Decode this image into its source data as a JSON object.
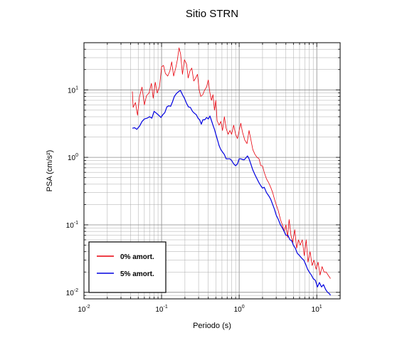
{
  "chart_data": {
    "type": "line",
    "title": "Sitio STRN",
    "xlabel": "Periodo (s)",
    "ylabel": "PSA (cm/s²)",
    "xscale": "log",
    "yscale": "log",
    "xlim": [
      0.01,
      20
    ],
    "ylim": [
      0.008,
      50
    ],
    "grid": true,
    "legend_position": "bottom-left",
    "x_ticks": [
      {
        "value": 0.01,
        "base": "10",
        "exp": "-2"
      },
      {
        "value": 0.1,
        "base": "10",
        "exp": "-1"
      },
      {
        "value": 1,
        "base": "10",
        "exp": "0"
      },
      {
        "value": 10,
        "base": "10",
        "exp": "1"
      }
    ],
    "y_ticks": [
      {
        "value": 0.01,
        "base": "10",
        "exp": "-2"
      },
      {
        "value": 0.1,
        "base": "10",
        "exp": "-1"
      },
      {
        "value": 1,
        "base": "10",
        "exp": "0"
      },
      {
        "value": 10,
        "base": "10",
        "exp": "1"
      }
    ],
    "series": [
      {
        "name": "0% amort.",
        "color": "#e8000b",
        "points": [
          [
            0.042,
            9.5
          ],
          [
            0.043,
            5.5
          ],
          [
            0.046,
            6.5
          ],
          [
            0.049,
            4.2
          ],
          [
            0.052,
            8.0
          ],
          [
            0.056,
            11.0
          ],
          [
            0.06,
            6.0
          ],
          [
            0.064,
            8.2
          ],
          [
            0.069,
            9.0
          ],
          [
            0.074,
            12.5
          ],
          [
            0.078,
            7.5
          ],
          [
            0.083,
            13.0
          ],
          [
            0.088,
            9.0
          ],
          [
            0.094,
            11.0
          ],
          [
            0.1,
            22.0
          ],
          [
            0.106,
            23.0
          ],
          [
            0.112,
            17.5
          ],
          [
            0.12,
            16.0
          ],
          [
            0.128,
            19.0
          ],
          [
            0.135,
            26.0
          ],
          [
            0.143,
            16.0
          ],
          [
            0.152,
            21.0
          ],
          [
            0.16,
            28.0
          ],
          [
            0.168,
            42.0
          ],
          [
            0.176,
            34.0
          ],
          [
            0.186,
            17.0
          ],
          [
            0.197,
            28.0
          ],
          [
            0.21,
            24.0
          ],
          [
            0.22,
            15.0
          ],
          [
            0.232,
            19.0
          ],
          [
            0.245,
            21.0
          ],
          [
            0.26,
            13.5
          ],
          [
            0.275,
            15.0
          ],
          [
            0.29,
            17.0
          ],
          [
            0.305,
            10.0
          ],
          [
            0.32,
            8.0
          ],
          [
            0.34,
            8.5
          ],
          [
            0.36,
            10.0
          ],
          [
            0.38,
            11.0
          ],
          [
            0.4,
            14.0
          ],
          [
            0.42,
            9.0
          ],
          [
            0.44,
            7.0
          ],
          [
            0.46,
            8.5
          ],
          [
            0.48,
            5.0
          ],
          [
            0.5,
            7.0
          ],
          [
            0.52,
            3.5
          ],
          [
            0.55,
            3.0
          ],
          [
            0.58,
            3.4
          ],
          [
            0.61,
            2.5
          ],
          [
            0.645,
            4.0
          ],
          [
            0.68,
            2.7
          ],
          [
            0.72,
            2.2
          ],
          [
            0.76,
            2.5
          ],
          [
            0.8,
            2.2
          ],
          [
            0.85,
            3.0
          ],
          [
            0.9,
            2.2
          ],
          [
            0.95,
            1.9
          ],
          [
            1.0,
            2.5
          ],
          [
            1.05,
            3.2
          ],
          [
            1.1,
            2.4
          ],
          [
            1.18,
            1.8
          ],
          [
            1.26,
            1.6
          ],
          [
            1.34,
            2.5
          ],
          [
            1.42,
            1.8
          ],
          [
            1.5,
            1.3
          ],
          [
            1.6,
            1.1
          ],
          [
            1.7,
            1.0
          ],
          [
            1.8,
            0.95
          ],
          [
            1.9,
            0.75
          ],
          [
            2.0,
            0.75
          ],
          [
            2.1,
            0.6
          ],
          [
            2.25,
            0.48
          ],
          [
            2.4,
            0.42
          ],
          [
            2.55,
            0.36
          ],
          [
            2.7,
            0.3
          ],
          [
            2.85,
            0.24
          ],
          [
            3.0,
            0.2
          ],
          [
            3.2,
            0.16
          ],
          [
            3.4,
            0.12
          ],
          [
            3.6,
            0.1
          ],
          [
            3.8,
            0.08
          ],
          [
            4.0,
            0.1
          ],
          [
            4.2,
            0.065
          ],
          [
            4.4,
            0.12
          ],
          [
            4.65,
            0.07
          ],
          [
            4.9,
            0.055
          ],
          [
            5.2,
            0.085
          ],
          [
            5.5,
            0.045
          ],
          [
            5.8,
            0.06
          ],
          [
            6.1,
            0.05
          ],
          [
            6.5,
            0.06
          ],
          [
            6.9,
            0.035
          ],
          [
            7.3,
            0.06
          ],
          [
            7.7,
            0.028
          ],
          [
            8.2,
            0.04
          ],
          [
            8.7,
            0.025
          ],
          [
            9.2,
            0.03
          ],
          [
            9.8,
            0.022
          ],
          [
            10.4,
            0.028
          ],
          [
            11.0,
            0.018
          ],
          [
            11.7,
            0.024
          ],
          [
            12.4,
            0.02
          ],
          [
            13.2,
            0.02
          ],
          [
            14.0,
            0.018
          ],
          [
            15.0,
            0.016
          ]
        ]
      },
      {
        "name": "5% amort.",
        "color": "#0000e0",
        "points": [
          [
            0.042,
            2.7
          ],
          [
            0.045,
            2.75
          ],
          [
            0.048,
            2.6
          ],
          [
            0.052,
            2.9
          ],
          [
            0.056,
            3.4
          ],
          [
            0.06,
            3.7
          ],
          [
            0.065,
            3.8
          ],
          [
            0.07,
            4.0
          ],
          [
            0.075,
            3.8
          ],
          [
            0.08,
            4.8
          ],
          [
            0.086,
            4.5
          ],
          [
            0.092,
            4.2
          ],
          [
            0.098,
            3.9
          ],
          [
            0.104,
            4.3
          ],
          [
            0.11,
            4.6
          ],
          [
            0.117,
            5.6
          ],
          [
            0.124,
            5.8
          ],
          [
            0.131,
            5.7
          ],
          [
            0.138,
            6.6
          ],
          [
            0.146,
            8.0
          ],
          [
            0.155,
            8.8
          ],
          [
            0.165,
            9.4
          ],
          [
            0.175,
            9.8
          ],
          [
            0.186,
            8.5
          ],
          [
            0.197,
            7.5
          ],
          [
            0.21,
            6.3
          ],
          [
            0.222,
            5.6
          ],
          [
            0.235,
            5.5
          ],
          [
            0.25,
            4.8
          ],
          [
            0.265,
            4.5
          ],
          [
            0.28,
            4.3
          ],
          [
            0.295,
            3.8
          ],
          [
            0.31,
            3.6
          ],
          [
            0.325,
            3.1
          ],
          [
            0.34,
            3.6
          ],
          [
            0.36,
            3.6
          ],
          [
            0.38,
            3.9
          ],
          [
            0.4,
            3.7
          ],
          [
            0.42,
            4.1
          ],
          [
            0.44,
            3.5
          ],
          [
            0.46,
            3.0
          ],
          [
            0.48,
            2.6
          ],
          [
            0.5,
            2.2
          ],
          [
            0.52,
            1.9
          ],
          [
            0.55,
            1.5
          ],
          [
            0.58,
            1.3
          ],
          [
            0.61,
            1.2
          ],
          [
            0.645,
            1.1
          ],
          [
            0.68,
            0.95
          ],
          [
            0.72,
            0.95
          ],
          [
            0.76,
            0.95
          ],
          [
            0.8,
            0.9
          ],
          [
            0.85,
            0.8
          ],
          [
            0.9,
            0.75
          ],
          [
            0.95,
            0.8
          ],
          [
            1.0,
            0.95
          ],
          [
            1.05,
            0.95
          ],
          [
            1.1,
            0.93
          ],
          [
            1.16,
            0.92
          ],
          [
            1.22,
            0.98
          ],
          [
            1.28,
            1.05
          ],
          [
            1.34,
            0.95
          ],
          [
            1.4,
            0.82
          ],
          [
            1.5,
            0.65
          ],
          [
            1.6,
            0.55
          ],
          [
            1.7,
            0.48
          ],
          [
            1.8,
            0.42
          ],
          [
            1.9,
            0.38
          ],
          [
            2.0,
            0.35
          ],
          [
            2.1,
            0.36
          ],
          [
            2.25,
            0.3
          ],
          [
            2.4,
            0.27
          ],
          [
            2.55,
            0.24
          ],
          [
            2.7,
            0.2
          ],
          [
            2.85,
            0.17
          ],
          [
            3.0,
            0.14
          ],
          [
            3.2,
            0.12
          ],
          [
            3.4,
            0.1
          ],
          [
            3.6,
            0.09
          ],
          [
            3.8,
            0.08
          ],
          [
            4.0,
            0.07
          ],
          [
            4.25,
            0.07
          ],
          [
            4.5,
            0.06
          ],
          [
            4.75,
            0.058
          ],
          [
            5.0,
            0.05
          ],
          [
            5.3,
            0.045
          ],
          [
            5.6,
            0.038
          ],
          [
            6.0,
            0.035
          ],
          [
            6.4,
            0.032
          ],
          [
            6.8,
            0.03
          ],
          [
            7.2,
            0.026
          ],
          [
            7.6,
            0.022
          ],
          [
            8.0,
            0.02
          ],
          [
            8.5,
            0.018
          ],
          [
            9.0,
            0.016
          ],
          [
            9.6,
            0.015
          ],
          [
            10.2,
            0.012
          ],
          [
            10.8,
            0.014
          ],
          [
            11.5,
            0.012
          ],
          [
            12.2,
            0.013
          ],
          [
            13.0,
            0.011
          ],
          [
            13.8,
            0.01
          ],
          [
            14.6,
            0.0095
          ],
          [
            15.0,
            0.009
          ]
        ]
      }
    ]
  }
}
